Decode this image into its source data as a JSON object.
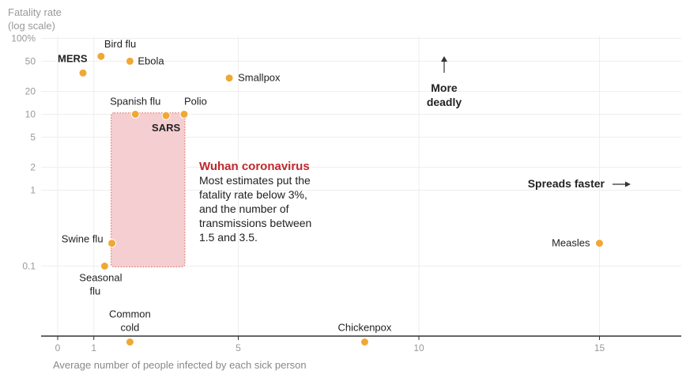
{
  "chart_data": {
    "type": "scatter",
    "title": "",
    "ylabel_lines": [
      "Fatality rate",
      "(log scale)"
    ],
    "xlabel": "Average number of people infected by each sick person",
    "x_range": [
      -0.5,
      17.8
    ],
    "y_scale": "log",
    "y_range": [
      0.01,
      100
    ],
    "x_ticks": [
      "0",
      "1",
      "5",
      "10",
      "15"
    ],
    "x_tick_values": [
      0,
      1,
      5,
      10,
      15
    ],
    "y_ticks": [
      {
        "value": 100,
        "label": "100%"
      },
      {
        "value": 50,
        "label": "50"
      },
      {
        "value": 20,
        "label": "20"
      },
      {
        "value": 10,
        "label": "10"
      },
      {
        "value": 5,
        "label": "5"
      },
      {
        "value": 2,
        "label": "2"
      },
      {
        "value": 1,
        "label": "1"
      },
      {
        "value": 0.1,
        "label": "0.1"
      }
    ],
    "points": [
      {
        "label": "Bird flu",
        "x": 1.2,
        "y": 58,
        "bold": false
      },
      {
        "label": "MERS",
        "x": 0.7,
        "y": 35,
        "bold": true
      },
      {
        "label": "Ebola",
        "x": 2.0,
        "y": 50,
        "bold": false
      },
      {
        "label": "Smallpox",
        "x": 4.75,
        "y": 30,
        "bold": false
      },
      {
        "label": "Spanish flu",
        "x": 2.15,
        "y": 10,
        "bold": false
      },
      {
        "label": "SARS",
        "x": 3.0,
        "y": 9.6,
        "bold": true
      },
      {
        "label": "Polio",
        "x": 3.5,
        "y": 10,
        "bold": false
      },
      {
        "label": "Swine flu",
        "x": 1.5,
        "y": 0.2,
        "bold": false
      },
      {
        "label": "Seasonal flu",
        "x": 1.3,
        "y": 0.1,
        "bold": false
      },
      {
        "label": "Common cold",
        "x": 2.0,
        "y": 0.01,
        "bold": false
      },
      {
        "label": "Chickenpox",
        "x": 8.5,
        "y": 0.01,
        "bold": false
      },
      {
        "label": "Measles",
        "x": 15.0,
        "y": 0.2,
        "bold": false
      }
    ],
    "highlight_region": {
      "x": [
        1.5,
        3.5
      ],
      "y": [
        0.1,
        3
      ]
    },
    "annotation": {
      "title": "Wuhan coronavirus",
      "body_lines": [
        "Most estimates put the",
        "fatality rate below 3%,",
        "and the number of",
        "transmissions between",
        "1.5 and 3.5."
      ]
    },
    "direction_labels": {
      "up_lines": [
        "More",
        "deadly"
      ],
      "right": "Spreads faster"
    },
    "colors": {
      "point": "#f0a835",
      "point_stroke": "#ffffff",
      "region_fill": "#f2c6c8",
      "region_stroke": "#e07b6e",
      "annotation_title": "#c0282d",
      "gridline": "#eeeeee",
      "axis": "#333333"
    }
  }
}
